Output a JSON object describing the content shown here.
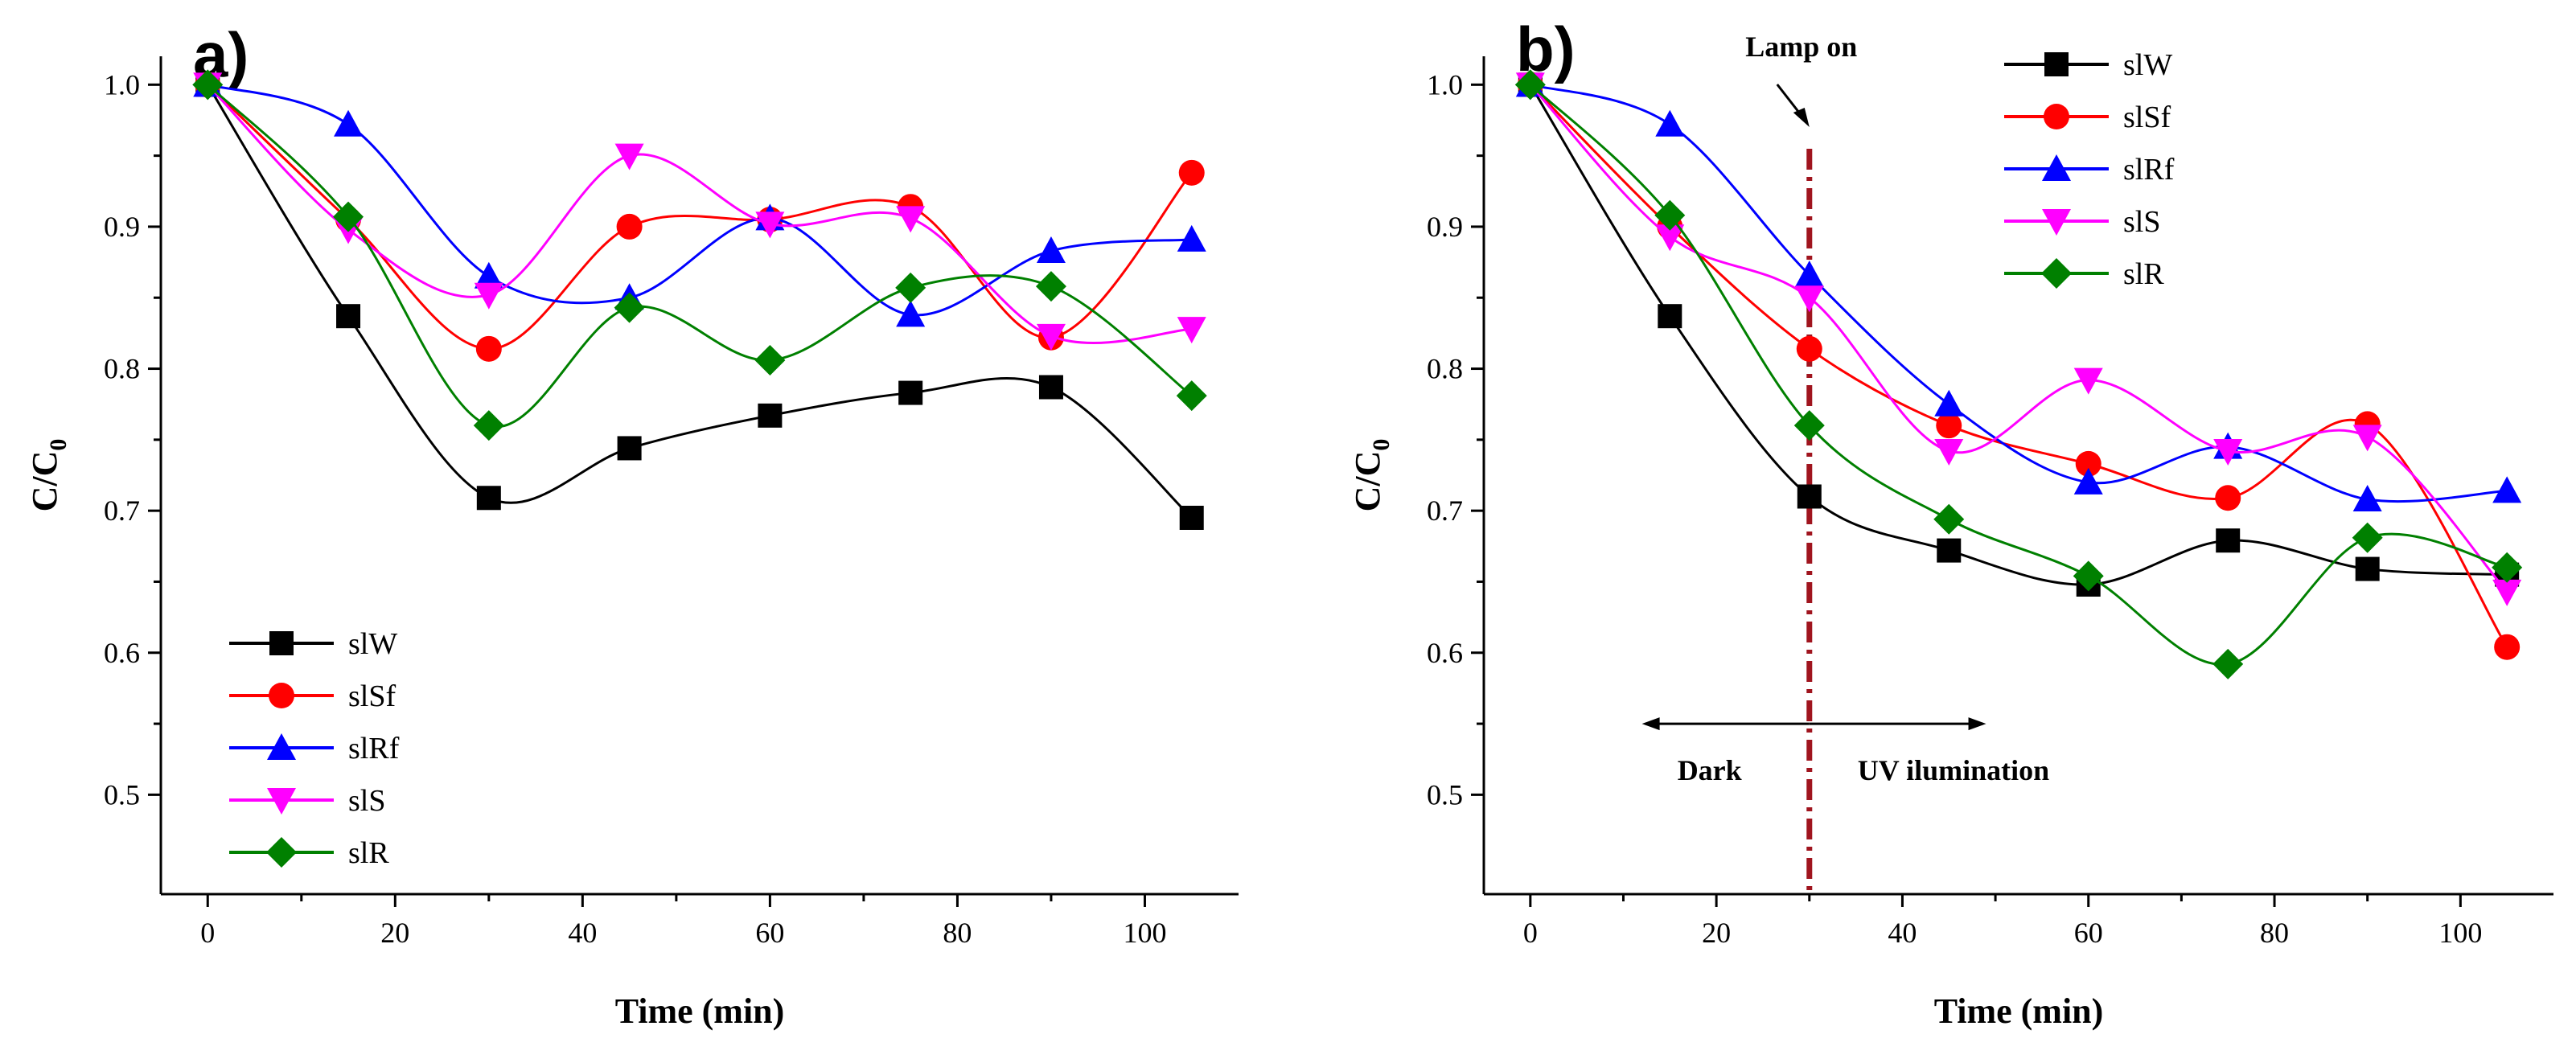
{
  "chart_data": [
    {
      "type": "line",
      "panel_label": "a)",
      "xlabel": "Time (min)",
      "ylabel_main": "C/C",
      "ylabel_sub": "0",
      "x": [
        0,
        15,
        30,
        45,
        60,
        75,
        90,
        105
      ],
      "xlim": [
        -5,
        110
      ],
      "ylim": [
        0.43,
        1.02
      ],
      "xticks": [
        0,
        20,
        40,
        60,
        80,
        100
      ],
      "xtick_labels": [
        "0",
        "20",
        "40",
        "60",
        "80",
        "100"
      ],
      "yticks": [
        0.5,
        0.6,
        0.7,
        0.8,
        0.9,
        1.0
      ],
      "ytick_labels": [
        "0.5",
        "0.6",
        "0.7",
        "0.8",
        "0.9",
        "1.0"
      ],
      "legend_position": "bottom-left",
      "series": [
        {
          "name": "slW",
          "color": "#000000",
          "marker": "square",
          "values": [
            1.0,
            0.837,
            0.709,
            0.744,
            0.767,
            0.783,
            0.787,
            0.695
          ]
        },
        {
          "name": "slSf",
          "color": "#ff0000",
          "marker": "circle",
          "values": [
            1.0,
            0.905,
            0.814,
            0.9,
            0.905,
            0.914,
            0.822,
            0.938
          ]
        },
        {
          "name": "slRf",
          "color": "#0000ff",
          "marker": "triangle-up",
          "values": [
            1.0,
            0.972,
            0.865,
            0.85,
            0.906,
            0.838,
            0.883,
            0.891
          ]
        },
        {
          "name": "slS",
          "color": "#ff00ff",
          "marker": "triangle-down",
          "values": [
            1.0,
            0.898,
            0.852,
            0.95,
            0.902,
            0.906,
            0.823,
            0.828
          ]
        },
        {
          "name": "slR",
          "color": "#008000",
          "marker": "diamond",
          "values": [
            1.0,
            0.907,
            0.76,
            0.843,
            0.806,
            0.857,
            0.858,
            0.781
          ]
        }
      ]
    },
    {
      "type": "line",
      "panel_label": "b)",
      "xlabel": "Time (min)",
      "ylabel_main": "C/C",
      "ylabel_sub": "0",
      "x": [
        0,
        15,
        30,
        45,
        60,
        75,
        90,
        105
      ],
      "xlim": [
        -5,
        110
      ],
      "ylim": [
        0.43,
        1.02
      ],
      "xticks": [
        0,
        20,
        40,
        60,
        80,
        100
      ],
      "xtick_labels": [
        "0",
        "20",
        "40",
        "60",
        "80",
        "100"
      ],
      "yticks": [
        0.5,
        0.6,
        0.7,
        0.8,
        0.9,
        1.0
      ],
      "ytick_labels": [
        "0.5",
        "0.6",
        "0.7",
        "0.8",
        "0.9",
        "1.0"
      ],
      "legend_position": "top-center",
      "annotations": {
        "lamp_on": "Lamp on",
        "lamp_x": 30,
        "dark": "Dark",
        "uv": "UV ilumination",
        "dark_arrow_from": 12,
        "uv_arrow_to": 49,
        "arrow_y": 0.55
      },
      "series": [
        {
          "name": "slW",
          "color": "#000000",
          "marker": "square",
          "values": [
            1.0,
            0.837,
            0.71,
            0.672,
            0.648,
            0.679,
            0.659,
            0.655
          ]
        },
        {
          "name": "slSf",
          "color": "#ff0000",
          "marker": "circle",
          "values": [
            1.0,
            0.9,
            0.814,
            0.76,
            0.733,
            0.709,
            0.761,
            0.604
          ]
        },
        {
          "name": "slRf",
          "color": "#0000ff",
          "marker": "triangle-up",
          "values": [
            1.0,
            0.972,
            0.866,
            0.775,
            0.72,
            0.745,
            0.708,
            0.714
          ]
        },
        {
          "name": "slS",
          "color": "#ff00ff",
          "marker": "triangle-down",
          "values": [
            1.0,
            0.893,
            0.85,
            0.742,
            0.792,
            0.742,
            0.752,
            0.643
          ]
        },
        {
          "name": "slR",
          "color": "#008000",
          "marker": "diamond",
          "values": [
            1.0,
            0.908,
            0.76,
            0.694,
            0.654,
            0.592,
            0.681,
            0.66
          ]
        }
      ]
    }
  ]
}
